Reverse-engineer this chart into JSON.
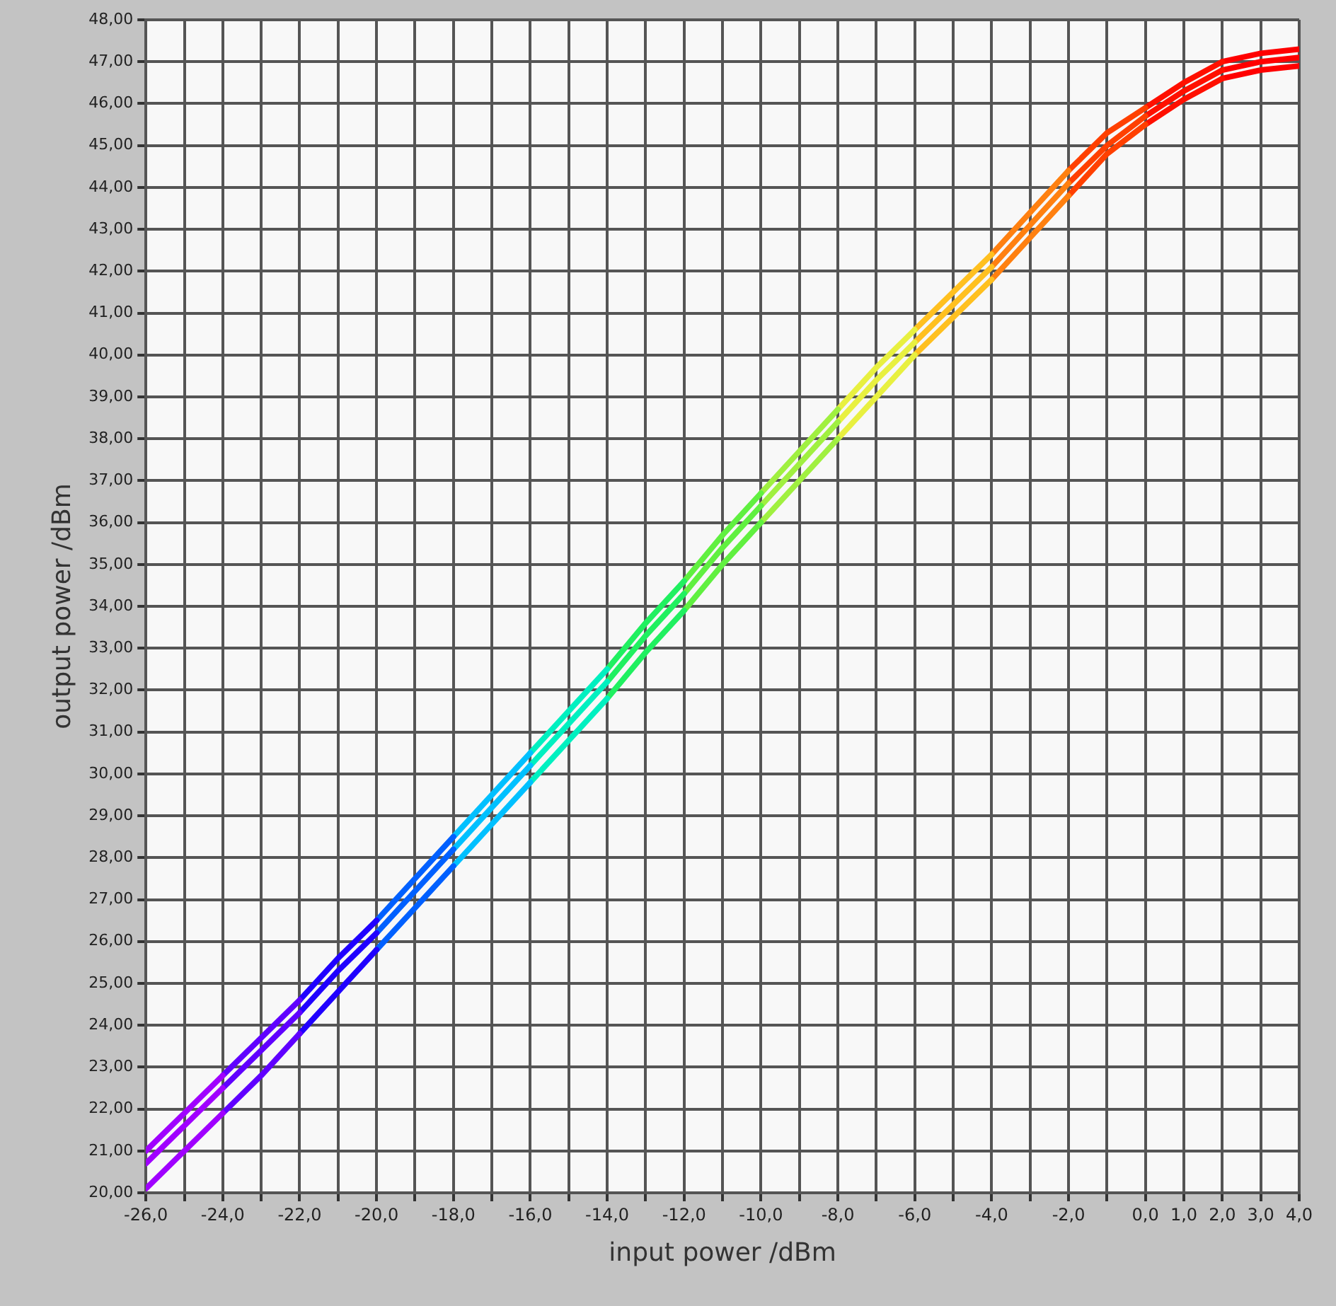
{
  "chart_data": {
    "type": "line",
    "xlabel": "input power /dBm",
    "ylabel": "output power /dBm",
    "series": [
      {
        "color": "#a000ff",
        "x": [
          -26,
          -25,
          -24
        ],
        "values": [
          21.0,
          21.9,
          22.8
        ]
      },
      {
        "color": "#6000ff",
        "x": [
          -24,
          -23,
          -22
        ],
        "values": [
          22.8,
          23.7,
          24.6
        ]
      },
      {
        "color": "#2000ff",
        "x": [
          -22,
          -21,
          -20
        ],
        "values": [
          24.6,
          25.6,
          26.5
        ]
      },
      {
        "color": "#0060ff",
        "x": [
          -20,
          -19,
          -18
        ],
        "values": [
          26.5,
          27.5,
          28.5
        ]
      },
      {
        "color": "#00c0ff",
        "x": [
          -18,
          -17,
          -16
        ],
        "values": [
          28.5,
          29.5,
          30.5
        ]
      },
      {
        "color": "#00f0c0",
        "x": [
          -16,
          -15,
          -14
        ],
        "values": [
          30.5,
          31.5,
          32.5
        ]
      },
      {
        "color": "#20f060",
        "x": [
          -14,
          -13,
          -12
        ],
        "values": [
          32.5,
          33.6,
          34.6
        ]
      },
      {
        "color": "#60f040",
        "x": [
          -12,
          -11,
          -10
        ],
        "values": [
          34.6,
          35.7,
          36.7
        ]
      },
      {
        "color": "#a0f040",
        "x": [
          -10,
          -9,
          -8
        ],
        "values": [
          36.7,
          37.7,
          38.7
        ]
      },
      {
        "color": "#e8f040",
        "x": [
          -8,
          -7,
          -6
        ],
        "values": [
          38.7,
          39.7,
          40.6
        ]
      },
      {
        "color": "#ffc020",
        "x": [
          -6,
          -5,
          -4
        ],
        "values": [
          40.6,
          41.5,
          42.4
        ]
      },
      {
        "color": "#ff8010",
        "x": [
          -4,
          -3,
          -2
        ],
        "values": [
          42.4,
          43.4,
          44.4
        ]
      },
      {
        "color": "#ff4000",
        "x": [
          -2,
          -1,
          0
        ],
        "values": [
          44.4,
          45.3,
          45.9
        ]
      },
      {
        "color": "#ff1000",
        "x": [
          0,
          1,
          2
        ],
        "values": [
          45.9,
          46.5,
          47.0
        ]
      },
      {
        "color": "#ff0000",
        "x": [
          2,
          3,
          4
        ],
        "values": [
          47.0,
          47.2,
          47.3
        ]
      },
      {
        "color": "#a000ff",
        "x": [
          -26,
          -25,
          -24
        ],
        "values": [
          20.7,
          21.6,
          22.5
        ]
      },
      {
        "color": "#6000ff",
        "x": [
          -24,
          -23,
          -22
        ],
        "values": [
          22.5,
          23.4,
          24.3
        ]
      },
      {
        "color": "#2000ff",
        "x": [
          -22,
          -21,
          -20
        ],
        "values": [
          24.3,
          25.3,
          26.2
        ]
      },
      {
        "color": "#0060ff",
        "x": [
          -20,
          -19,
          -18
        ],
        "values": [
          26.2,
          27.2,
          28.2
        ]
      },
      {
        "color": "#00c0ff",
        "x": [
          -18,
          -17,
          -16
        ],
        "values": [
          28.2,
          29.2,
          30.2
        ]
      },
      {
        "color": "#00f0c0",
        "x": [
          -16,
          -15,
          -14
        ],
        "values": [
          30.2,
          31.2,
          32.2
        ]
      },
      {
        "color": "#20f060",
        "x": [
          -14,
          -13,
          -12
        ],
        "values": [
          32.2,
          33.3,
          34.3
        ]
      },
      {
        "color": "#60f040",
        "x": [
          -12,
          -11,
          -10
        ],
        "values": [
          34.3,
          35.4,
          36.4
        ]
      },
      {
        "color": "#a0f040",
        "x": [
          -10,
          -9,
          -8
        ],
        "values": [
          36.4,
          37.4,
          38.4
        ]
      },
      {
        "color": "#e8f040",
        "x": [
          -8,
          -7,
          -6
        ],
        "values": [
          38.4,
          39.4,
          40.3
        ]
      },
      {
        "color": "#ffc020",
        "x": [
          -6,
          -5,
          -4
        ],
        "values": [
          40.3,
          41.2,
          42.1
        ]
      },
      {
        "color": "#ff8010",
        "x": [
          -4,
          -3,
          -2
        ],
        "values": [
          42.1,
          43.1,
          44.1
        ]
      },
      {
        "color": "#ff4000",
        "x": [
          -2,
          -1,
          0
        ],
        "values": [
          44.1,
          45.0,
          45.7
        ]
      },
      {
        "color": "#ff1000",
        "x": [
          0,
          1,
          2
        ],
        "values": [
          45.7,
          46.3,
          46.8
        ]
      },
      {
        "color": "#ff0000",
        "x": [
          2,
          3,
          4
        ],
        "values": [
          46.8,
          47.0,
          47.1
        ]
      },
      {
        "color": "#a000ff",
        "x": [
          -26,
          -25,
          -24
        ],
        "values": [
          20.1,
          21.0,
          21.9
        ]
      },
      {
        "color": "#6000ff",
        "x": [
          -24,
          -23,
          -22
        ],
        "values": [
          21.9,
          22.8,
          23.8
        ]
      },
      {
        "color": "#2000ff",
        "x": [
          -22,
          -21,
          -20
        ],
        "values": [
          23.8,
          24.8,
          25.8
        ]
      },
      {
        "color": "#0060ff",
        "x": [
          -20,
          -19,
          -18
        ],
        "values": [
          25.8,
          26.8,
          27.8
        ]
      },
      {
        "color": "#00c0ff",
        "x": [
          -18,
          -17,
          -16
        ],
        "values": [
          27.8,
          28.8,
          29.8
        ]
      },
      {
        "color": "#00f0c0",
        "x": [
          -16,
          -15,
          -14
        ],
        "values": [
          29.8,
          30.8,
          31.8
        ]
      },
      {
        "color": "#20f060",
        "x": [
          -14,
          -13,
          -12
        ],
        "values": [
          31.8,
          32.9,
          33.9
        ]
      },
      {
        "color": "#60f040",
        "x": [
          -12,
          -11,
          -10
        ],
        "values": [
          33.9,
          35.0,
          36.0
        ]
      },
      {
        "color": "#a0f040",
        "x": [
          -10,
          -9,
          -8
        ],
        "values": [
          36.0,
          37.0,
          38.0
        ]
      },
      {
        "color": "#e8f040",
        "x": [
          -8,
          -7,
          -6
        ],
        "values": [
          38.0,
          39.0,
          40.0
        ]
      },
      {
        "color": "#ffc020",
        "x": [
          -6,
          -5,
          -4
        ],
        "values": [
          40.0,
          40.9,
          41.8
        ]
      },
      {
        "color": "#ff8010",
        "x": [
          -4,
          -3,
          -2
        ],
        "values": [
          41.8,
          42.8,
          43.8
        ]
      },
      {
        "color": "#ff4000",
        "x": [
          -2,
          -1,
          0
        ],
        "values": [
          43.8,
          44.8,
          45.5
        ]
      },
      {
        "color": "#ff1000",
        "x": [
          0,
          1,
          2
        ],
        "values": [
          45.5,
          46.1,
          46.6
        ]
      },
      {
        "color": "#ff0000",
        "x": [
          2,
          3,
          4
        ],
        "values": [
          46.6,
          46.8,
          46.9
        ]
      }
    ],
    "xlim": [
      -26,
      4
    ],
    "xticks": [
      {
        "value": -26,
        "label": "-26,0"
      },
      {
        "value": -25,
        "label": null
      },
      {
        "value": -24,
        "label": "-24,0"
      },
      {
        "value": -23,
        "label": null
      },
      {
        "value": -22,
        "label": "-22,0"
      },
      {
        "value": -21,
        "label": null
      },
      {
        "value": -20,
        "label": "-20,0"
      },
      {
        "value": -19,
        "label": null
      },
      {
        "value": -18,
        "label": "-18,0"
      },
      {
        "value": -17,
        "label": null
      },
      {
        "value": -16,
        "label": "-16,0"
      },
      {
        "value": -15,
        "label": null
      },
      {
        "value": -14,
        "label": "-14,0"
      },
      {
        "value": -13,
        "label": null
      },
      {
        "value": -12,
        "label": "-12,0"
      },
      {
        "value": -11,
        "label": null
      },
      {
        "value": -10,
        "label": "-10,0"
      },
      {
        "value": -9,
        "label": null
      },
      {
        "value": -8,
        "label": "-8,0"
      },
      {
        "value": -7,
        "label": null
      },
      {
        "value": -6,
        "label": "-6,0"
      },
      {
        "value": -5,
        "label": null
      },
      {
        "value": -4,
        "label": "-4,0"
      },
      {
        "value": -3,
        "label": null
      },
      {
        "value": -2,
        "label": "-2,0"
      },
      {
        "value": -1,
        "label": null
      },
      {
        "value": 0,
        "label": "0,0"
      },
      {
        "value": 1,
        "label": "1,0"
      },
      {
        "value": 2,
        "label": "2,0"
      },
      {
        "value": 3,
        "label": "3,0"
      },
      {
        "value": 4,
        "label": "4,0"
      }
    ],
    "ylim": [
      20,
      48
    ],
    "yticks": [
      {
        "value": 20,
        "label": "20,00"
      },
      {
        "value": 21,
        "label": "21,00"
      },
      {
        "value": 22,
        "label": "22,00"
      },
      {
        "value": 23,
        "label": "23,00"
      },
      {
        "value": 24,
        "label": "24,00"
      },
      {
        "value": 25,
        "label": "25,00"
      },
      {
        "value": 26,
        "label": "26,00"
      },
      {
        "value": 27,
        "label": "27,00"
      },
      {
        "value": 28,
        "label": "28,00"
      },
      {
        "value": 29,
        "label": "29,00"
      },
      {
        "value": 30,
        "label": "30,00"
      },
      {
        "value": 31,
        "label": "31,00"
      },
      {
        "value": 32,
        "label": "32,00"
      },
      {
        "value": 33,
        "label": "33,00"
      },
      {
        "value": 34,
        "label": "34,00"
      },
      {
        "value": 35,
        "label": "35,00"
      },
      {
        "value": 36,
        "label": "36,00"
      },
      {
        "value": 37,
        "label": "37,00"
      },
      {
        "value": 38,
        "label": "38,00"
      },
      {
        "value": 39,
        "label": "39,00"
      },
      {
        "value": 40,
        "label": "40,00"
      },
      {
        "value": 41,
        "label": "41,00"
      },
      {
        "value": 42,
        "label": "42,00"
      },
      {
        "value": 43,
        "label": "43,00"
      },
      {
        "value": 44,
        "label": "44,00"
      },
      {
        "value": 45,
        "label": "45,00"
      },
      {
        "value": 46,
        "label": "46,00"
      },
      {
        "value": 47,
        "label": "47,00"
      },
      {
        "value": 48,
        "label": "48,00"
      }
    ],
    "grid": true,
    "legend": false,
    "marker": "none",
    "line_style": "solid"
  }
}
